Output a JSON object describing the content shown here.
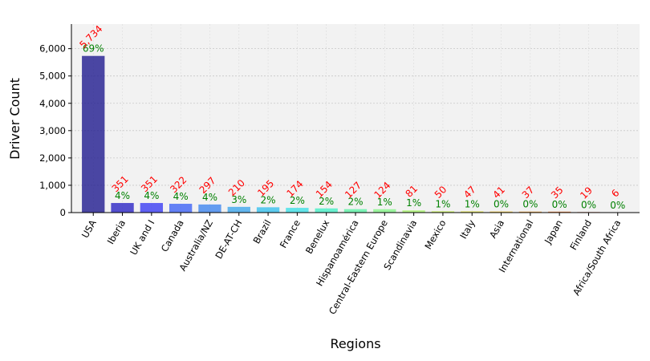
{
  "chart_data": {
    "type": "bar",
    "xlabel": "Regions",
    "ylabel": "Driver Count",
    "ylim": [
      0,
      6900
    ],
    "yticks": [
      0,
      1000,
      2000,
      3000,
      4000,
      5000,
      6000
    ],
    "ytick_labels": [
      "0",
      "1,000",
      "2,000",
      "3,000",
      "4,000",
      "5,000",
      "6,000"
    ],
    "grid": true,
    "categories": [
      "USA",
      "Iberia",
      "UK and I",
      "Canada",
      "Australia/NZ",
      "DE-AT-CH",
      "Brazil",
      "France",
      "Benelux",
      "Hispanoamérica",
      "Central-Eastern Europe",
      "Scandinavia",
      "Mexico",
      "Italy",
      "Asia",
      "International",
      "Japan",
      "Finland",
      "Africa/South Africa"
    ],
    "values": [
      5734,
      351,
      351,
      322,
      297,
      210,
      195,
      174,
      154,
      127,
      124,
      81,
      50,
      47,
      41,
      37,
      35,
      19,
      6
    ],
    "value_labels": [
      "5,734",
      "351",
      "351",
      "322",
      "297",
      "210",
      "195",
      "174",
      "154",
      "127",
      "124",
      "81",
      "50",
      "47",
      "41",
      "37",
      "35",
      "19",
      "6"
    ],
    "percent_labels": [
      "69%",
      "4%",
      "4%",
      "4%",
      "4%",
      "3%",
      "2%",
      "2%",
      "2%",
      "2%",
      "1%",
      "1%",
      "1%",
      "1%",
      "0%",
      "0%",
      "0%",
      "0%",
      "0%"
    ],
    "bar_colors": [
      "#1f1a8f",
      "#2b24c4",
      "#3a3cf2",
      "#3e63f5",
      "#3f86ef",
      "#3fa6ec",
      "#37c0ee",
      "#3ee0e6",
      "#46efc6",
      "#5ef2a6",
      "#86f58a",
      "#a8f46c",
      "#c6ef55",
      "#dede45",
      "#f0c43a",
      "#f5a032",
      "#f27a2a",
      "#ec5324",
      "#d2281c"
    ],
    "value_label_color": "#ff0000",
    "percent_label_color": "#008000"
  }
}
